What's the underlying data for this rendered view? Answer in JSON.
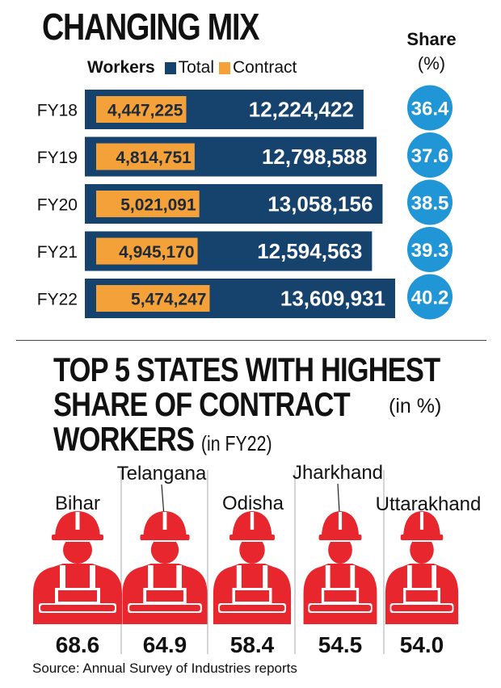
{
  "title": "CHANGING MIX",
  "share_header": {
    "label": "Share",
    "unit": "(%)"
  },
  "legend": {
    "lead": "Workers",
    "items": [
      {
        "name": "Total",
        "color": "#16426e"
      },
      {
        "name": "Contract",
        "color": "#f5a13a"
      }
    ]
  },
  "chart_data": [
    {
      "type": "bar",
      "orientation": "horizontal",
      "categories": [
        "FY18",
        "FY19",
        "FY20",
        "FY21",
        "FY22"
      ],
      "series": [
        {
          "name": "Total",
          "values": [
            12224422,
            12798588,
            13058156,
            12594563,
            13609931
          ],
          "labels": [
            "12,224,422",
            "12,798,588",
            "13,058,156",
            "12,594,563",
            "13,609,931"
          ]
        },
        {
          "name": "Contract",
          "values": [
            4447225,
            4814751,
            5021091,
            4945170,
            5474247
          ],
          "labels": [
            "4,447,225",
            "4,814,751",
            "5,021,091",
            "4,945,170",
            "5,474,247"
          ]
        }
      ],
      "share": {
        "values": [
          36.4,
          37.6,
          38.5,
          39.3,
          40.2
        ],
        "labels": [
          "36.4",
          "37.6",
          "38.5",
          "39.3",
          "40.2"
        ],
        "color": "#2196d6"
      },
      "grid": false
    },
    {
      "type": "bar",
      "title": "TOP 5 STATES WITH HIGHEST SHARE OF CONTRACT WORKERS",
      "subtitle": "(in FY22)",
      "unit": "(in %)",
      "categories": [
        "Bihar",
        "Telangana",
        "Odisha",
        "Jharkhand",
        "Uttarakhand"
      ],
      "values": [
        68.6,
        64.9,
        58.4,
        54.5,
        54.0
      ],
      "labels": [
        "68.6",
        "64.9",
        "58.4",
        "54.5",
        "54.0"
      ],
      "icon": "worker-hardhat-icon",
      "color": "#e8262d"
    }
  ],
  "states": {
    "title_line1": "TOP 5 STATES WITH HIGHEST",
    "title_line2": "SHARE OF CONTRACT",
    "title_line3": "WORKERS",
    "subtitle": "(in FY22)",
    "unit": "(in %)"
  },
  "colors": {
    "total": "#16426e",
    "contract": "#f5a13a",
    "share": "#2196d6",
    "worker": "#e8262d"
  },
  "source": "Source: Annual Survey of Industries reports"
}
